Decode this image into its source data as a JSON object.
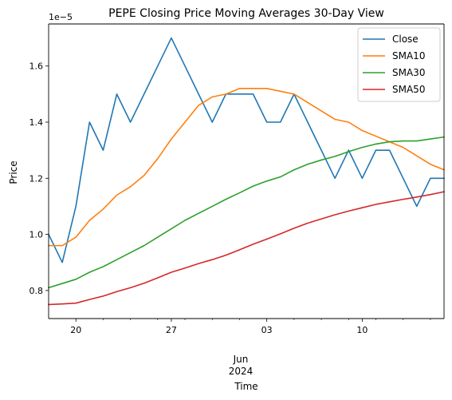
{
  "chart_data": {
    "type": "line",
    "title": "PEPE Closing Price Moving Averages 30-Day View",
    "xlabel": "Time",
    "ylabel": "Price",
    "y_offset_label": "1e−5",
    "y_scale": 1e-05,
    "ylim": [
      0.7,
      1.75
    ],
    "y_ticks": [
      0.8,
      1.0,
      1.2,
      1.4,
      1.6
    ],
    "y_tick_labels": [
      "0.8",
      "1.0",
      "1.2",
      "1.4",
      "1.6"
    ],
    "xlim": [
      "2024-05-18",
      "2024-06-16"
    ],
    "x_major_ticks": [
      "2024-05-20",
      "2024-05-27",
      "2024-06-03",
      "2024-06-10"
    ],
    "x_tick_labels": [
      "20",
      "27",
      "03",
      "10"
    ],
    "x_secondary_label": [
      "Jun",
      "2024"
    ],
    "x": [
      "2024-05-18",
      "2024-05-19",
      "2024-05-20",
      "2024-05-21",
      "2024-05-22",
      "2024-05-23",
      "2024-05-24",
      "2024-05-25",
      "2024-05-26",
      "2024-05-27",
      "2024-05-28",
      "2024-05-29",
      "2024-05-30",
      "2024-05-31",
      "2024-06-01",
      "2024-06-02",
      "2024-06-03",
      "2024-06-04",
      "2024-06-05",
      "2024-06-06",
      "2024-06-07",
      "2024-06-08",
      "2024-06-09",
      "2024-06-10",
      "2024-06-11",
      "2024-06-12",
      "2024-06-13",
      "2024-06-14",
      "2024-06-15",
      "2024-06-16"
    ],
    "series": [
      {
        "name": "Close",
        "color": "#1f77b4",
        "values": [
          1.0,
          0.9,
          1.1,
          1.4,
          1.3,
          1.5,
          1.4,
          1.5,
          1.6,
          1.7,
          1.6,
          1.5,
          1.4,
          1.5,
          1.5,
          1.5,
          1.4,
          1.4,
          1.5,
          1.4,
          1.3,
          1.2,
          1.3,
          1.2,
          1.3,
          1.3,
          1.2,
          1.1,
          1.2,
          1.2
        ]
      },
      {
        "name": "SMA10",
        "color": "#ff7f0e",
        "values": [
          0.96,
          0.96,
          0.99,
          1.05,
          1.09,
          1.14,
          1.17,
          1.21,
          1.27,
          1.34,
          1.4,
          1.46,
          1.49,
          1.5,
          1.52,
          1.52,
          1.52,
          1.51,
          1.5,
          1.47,
          1.44,
          1.41,
          1.4,
          1.37,
          1.35,
          1.33,
          1.31,
          1.28,
          1.25,
          1.23
        ]
      },
      {
        "name": "SMA30",
        "color": "#2ca02c",
        "values": [
          0.81,
          0.825,
          0.84,
          0.865,
          0.885,
          0.91,
          0.935,
          0.96,
          0.99,
          1.02,
          1.05,
          1.075,
          1.1,
          1.125,
          1.148,
          1.172,
          1.19,
          1.205,
          1.23,
          1.25,
          1.265,
          1.278,
          1.295,
          1.31,
          1.322,
          1.33,
          1.333,
          1.333,
          1.34,
          1.347
        ]
      },
      {
        "name": "SMA50",
        "color": "#d62728",
        "values": [
          0.75,
          0.752,
          0.755,
          0.768,
          0.78,
          0.796,
          0.81,
          0.826,
          0.845,
          0.865,
          0.88,
          0.896,
          0.91,
          0.926,
          0.945,
          0.965,
          0.983,
          1.002,
          1.022,
          1.04,
          1.055,
          1.07,
          1.083,
          1.095,
          1.107,
          1.116,
          1.125,
          1.133,
          1.142,
          1.152
        ]
      }
    ],
    "legend_placement": "upper-right",
    "grid": false
  }
}
